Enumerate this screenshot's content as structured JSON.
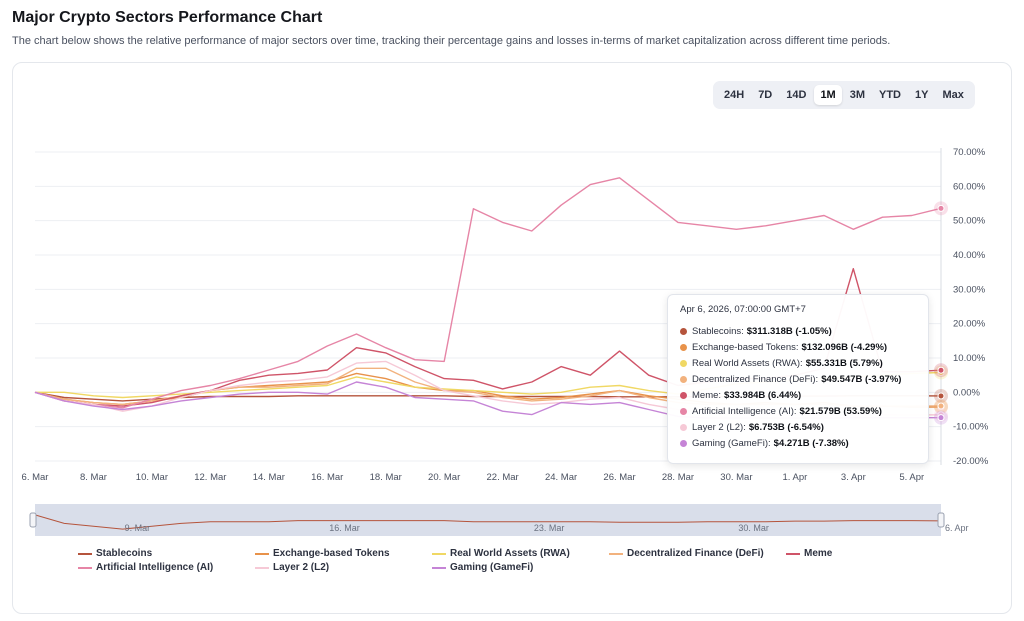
{
  "page": {
    "title": "Major Crypto Sectors Performance Chart",
    "subtitle": "The chart below shows the relative performance of major sectors over time, tracking their percentage gains and losses in-terms of market capitalization across different time periods."
  },
  "ranges": {
    "items": [
      "24H",
      "7D",
      "14D",
      "1M",
      "3M",
      "YTD",
      "1Y",
      "Max"
    ],
    "active": "1M"
  },
  "tooltip": {
    "date": "Apr 6, 2026, 07:00:00 GMT+7",
    "rows": [
      {
        "label": "Stablecoins:",
        "value": "$311.318B (-1.05%)",
        "color": "#b5543c"
      },
      {
        "label": "Exchange-based Tokens:",
        "value": "$132.096B (-4.29%)",
        "color": "#e8924a"
      },
      {
        "label": "Real World Assets (RWA):",
        "value": "$55.331B (5.79%)",
        "color": "#f0d864"
      },
      {
        "label": "Decentralized Finance (DeFi):",
        "value": "$49.547B (-3.97%)",
        "color": "#f2b27e"
      },
      {
        "label": "Meme:",
        "value": "$33.984B (6.44%)",
        "color": "#cf5468"
      },
      {
        "label": "Artificial Intelligence (AI):",
        "value": "$21.579B (53.59%)",
        "color": "#e685a6"
      },
      {
        "label": "Layer 2 (L2):",
        "value": "$6.753B (-6.54%)",
        "color": "#f6c9d6"
      },
      {
        "label": "Gaming (GameFi):",
        "value": "$4.271B (-7.38%)",
        "color": "#c584d6"
      }
    ]
  },
  "chart_data": {
    "type": "line",
    "ylabel_format": "percent",
    "ylim": [
      -20,
      70
    ],
    "yticks": [
      "70.00%",
      "60.00%",
      "50.00%",
      "40.00%",
      "30.00%",
      "20.00%",
      "10.00%",
      "0.00%",
      "-10.00%",
      "-20.00%"
    ],
    "ytick_values": [
      70,
      60,
      50,
      40,
      30,
      20,
      10,
      0,
      -10,
      -20
    ],
    "xticks": [
      "6. Mar",
      "8. Mar",
      "10. Mar",
      "12. Mar",
      "14. Mar",
      "16. Mar",
      "18. Mar",
      "20. Mar",
      "22. Mar",
      "24. Mar",
      "26. Mar",
      "28. Mar",
      "30. Mar",
      "1. Apr",
      "3. Apr",
      "5. Apr"
    ],
    "navigator_labels": [
      "9. Mar",
      "16. Mar",
      "23. Mar",
      "30. Mar",
      "6. Apr"
    ],
    "x": [
      "Mar 6",
      "Mar 7",
      "Mar 8",
      "Mar 9",
      "Mar 10",
      "Mar 11",
      "Mar 12",
      "Mar 13",
      "Mar 14",
      "Mar 15",
      "Mar 16",
      "Mar 17",
      "Mar 18",
      "Mar 19",
      "Mar 20",
      "Mar 21",
      "Mar 22",
      "Mar 23",
      "Mar 24",
      "Mar 25",
      "Mar 26",
      "Mar 27",
      "Mar 28",
      "Mar 29",
      "Mar 30",
      "Mar 31",
      "Apr 1",
      "Apr 2",
      "Apr 3",
      "Apr 4",
      "Apr 5",
      "Apr 6"
    ],
    "series": [
      {
        "name": "Stablecoins",
        "color": "#b5543c",
        "values": [
          0,
          -1.5,
          -2.0,
          -2.5,
          -2.0,
          -1.5,
          -1.2,
          -1.2,
          -1.2,
          -1.0,
          -1.0,
          -1.0,
          -1.0,
          -1.0,
          -1.0,
          -1.2,
          -1.2,
          -1.2,
          -1.2,
          -1.2,
          -1.3,
          -1.3,
          -1.3,
          -1.2,
          -1.2,
          -1.2,
          -1.1,
          -1.1,
          -1.0,
          -1.0,
          -1.0,
          -1.05
        ]
      },
      {
        "name": "Exchange-based Tokens",
        "color": "#e8924a",
        "values": [
          0,
          -2.0,
          -3.0,
          -3.5,
          -2.5,
          -1.5,
          0.5,
          1.5,
          2.0,
          2.5,
          3.0,
          5.5,
          4.0,
          1.5,
          0.5,
          0.5,
          -1.0,
          -2.0,
          -1.5,
          -0.5,
          0.5,
          -1.0,
          -2.0,
          -3.0,
          -3.5,
          -3.0,
          -3.5,
          -3.0,
          -4.0,
          -4.0,
          -4.3,
          -4.29
        ]
      },
      {
        "name": "Real World Assets (RWA)",
        "color": "#f0d864",
        "values": [
          0,
          0,
          -1.0,
          -1.5,
          -1.0,
          -0.5,
          0,
          0.5,
          1.0,
          1.5,
          2.0,
          4.5,
          3.0,
          1.5,
          1.0,
          0.5,
          0,
          -0.5,
          0,
          1.5,
          2.0,
          0.5,
          -0.5,
          1.0,
          2.5,
          3.0,
          3.5,
          4.0,
          4.5,
          5.0,
          5.5,
          5.79
        ]
      },
      {
        "name": "Decentralized Finance (DeFi)",
        "color": "#f2b27e",
        "values": [
          0,
          -2.0,
          -3.0,
          -3.5,
          -2.5,
          -1.0,
          0.5,
          1.5,
          1.5,
          2.0,
          2.5,
          7.0,
          7.0,
          3.0,
          0.5,
          0,
          -1.5,
          -2.5,
          -2.0,
          -1.0,
          0.5,
          -1.5,
          -3.0,
          -3.5,
          -3.5,
          -3.5,
          -3.5,
          -3.5,
          -4.0,
          -4.0,
          -4.0,
          -3.97
        ]
      },
      {
        "name": "Meme",
        "color": "#cf5468",
        "values": [
          0,
          -2.5,
          -3.5,
          -4.0,
          -3.0,
          -1.0,
          0.5,
          3.5,
          5.0,
          5.5,
          6.5,
          13.0,
          11.5,
          7.5,
          4.0,
          3.5,
          1.0,
          3.0,
          7.5,
          5.0,
          12.0,
          5.0,
          2.0,
          3.0,
          4.0,
          4.0,
          5.0,
          7.0,
          36.0,
          6.0,
          6.0,
          6.44
        ]
      },
      {
        "name": "Artificial Intelligence (AI)",
        "color": "#e685a6",
        "values": [
          0,
          -2.5,
          -3.5,
          -4.5,
          -2.0,
          0.5,
          2.0,
          4.0,
          6.5,
          9.0,
          13.5,
          17.0,
          13.0,
          9.5,
          9.0,
          53.5,
          49.5,
          47.0,
          54.5,
          60.5,
          62.5,
          56.0,
          49.5,
          48.5,
          47.5,
          48.5,
          50.0,
          51.5,
          47.5,
          51.0,
          51.5,
          53.59
        ]
      },
      {
        "name": "Layer 2 (L2)",
        "color": "#f6c9d6",
        "values": [
          0,
          -2.5,
          -3.5,
          -5.5,
          -4.0,
          -1.5,
          0.5,
          2.0,
          3.0,
          3.5,
          4.5,
          8.5,
          9.0,
          5.0,
          0.5,
          -1.0,
          -2.5,
          -3.5,
          -3.0,
          -2.0,
          -1.5,
          -3.5,
          -5.0,
          -6.0,
          -6.5,
          -6.5,
          -6.5,
          -6.5,
          -6.5,
          -6.5,
          -6.6,
          -6.54
        ]
      },
      {
        "name": "Gaming (GameFi)",
        "color": "#c584d6",
        "values": [
          0,
          -2.5,
          -4.0,
          -5.0,
          -4.0,
          -2.5,
          -1.5,
          -0.5,
          0,
          0,
          -0.5,
          3.0,
          1.5,
          -1.5,
          -2.0,
          -2.5,
          -5.5,
          -6.5,
          -3.0,
          -3.5,
          -3.0,
          -5.0,
          -7.0,
          -7.5,
          -7.5,
          -7.5,
          -7.5,
          -7.5,
          -7.4,
          -7.4,
          -7.4,
          -7.38
        ]
      }
    ],
    "legend": [
      "Stablecoins",
      "Exchange-based Tokens",
      "Real World Assets (RWA)",
      "Decentralized Finance (DeFi)",
      "Meme",
      "Artificial Intelligence (AI)",
      "Layer 2 (L2)",
      "Gaming (GameFi)"
    ],
    "legend_placement": "bottom",
    "grid": true
  }
}
